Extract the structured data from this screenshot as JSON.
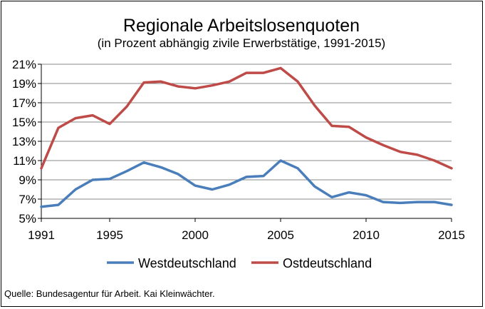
{
  "chart_data": {
    "type": "line",
    "title": "Regionale Arbeitslosenquoten",
    "subtitle": "(in Prozent abhängig zivile Erwerbstätige, 1991-2015)",
    "xlabel": "",
    "ylabel": "",
    "x": [
      1991,
      1992,
      1993,
      1994,
      1995,
      1996,
      1997,
      1998,
      1999,
      2000,
      2001,
      2002,
      2003,
      2004,
      2005,
      2006,
      2007,
      2008,
      2009,
      2010,
      2011,
      2012,
      2013,
      2014,
      2015
    ],
    "xlim": [
      1991,
      2015
    ],
    "ylim": [
      5,
      21
    ],
    "x_ticks": [
      "1991",
      "1995",
      "2000",
      "2005",
      "2010",
      "2015"
    ],
    "x_tick_values": [
      1991,
      1995,
      2000,
      2005,
      2010,
      2015
    ],
    "y_ticks": [
      "5%",
      "7%",
      "9%",
      "11%",
      "13%",
      "15%",
      "17%",
      "19%",
      "21%"
    ],
    "y_tick_values": [
      5,
      7,
      9,
      11,
      13,
      15,
      17,
      19,
      21
    ],
    "grid": true,
    "legend_position": "bottom",
    "series": [
      {
        "name": "Westdeutschland",
        "color": "#4a7ebb",
        "values": [
          6.2,
          6.4,
          8.0,
          9.0,
          9.1,
          9.9,
          10.8,
          10.3,
          9.6,
          8.4,
          8.0,
          8.5,
          9.3,
          9.4,
          11.0,
          10.2,
          8.3,
          7.2,
          7.7,
          7.4,
          6.7,
          6.6,
          6.7,
          6.7,
          6.4
        ]
      },
      {
        "name": "Ostdeutschland",
        "color": "#be4b48",
        "values": [
          10.2,
          14.4,
          15.4,
          15.7,
          14.8,
          16.6,
          19.1,
          19.2,
          18.7,
          18.5,
          18.8,
          19.2,
          20.1,
          20.1,
          20.6,
          19.2,
          16.7,
          14.6,
          14.5,
          13.4,
          12.6,
          11.9,
          11.6,
          11.0,
          10.2
        ]
      }
    ]
  },
  "source_text": "Quelle: Bundesagentur für Arbeit. Kai Kleinwächter."
}
